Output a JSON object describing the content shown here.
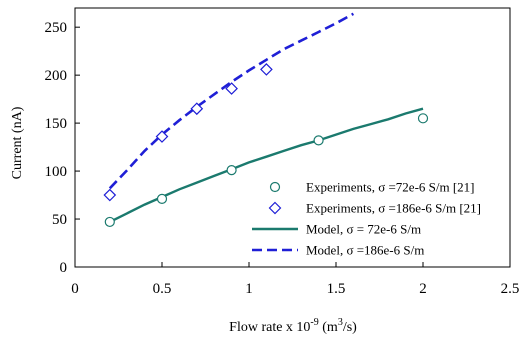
{
  "chart_data": {
    "type": "line",
    "xlabel": "Flow rate x 10",
    "xlabel_sup": "-9",
    "xlabel_unit": " (m",
    "xlabel_unit_sup": "3",
    "xlabel_unit_end": "/s)",
    "ylabel": "Current (nA)",
    "xlim": [
      0,
      2.5
    ],
    "ylim": [
      0,
      270
    ],
    "x_ticks": [
      0,
      0.5,
      1,
      1.5,
      2,
      2.5
    ],
    "x_tick_labels": [
      "0",
      "0.5",
      "1",
      "1.5",
      "2",
      "2.5"
    ],
    "y_ticks": [
      0,
      50,
      100,
      150,
      200,
      250
    ],
    "y_tick_labels": [
      "0",
      "50",
      "100",
      "150",
      "200",
      "250"
    ],
    "grid": false,
    "legend_position": "lower-right",
    "series": [
      {
        "name": "Experiments, σ =72e-6 S/m [21]",
        "kind": "scatter",
        "marker": "circle",
        "color": "#1b7a6e",
        "x": [
          0.2,
          0.5,
          0.9,
          1.4,
          2.0
        ],
        "y": [
          47,
          71,
          101,
          132,
          155
        ]
      },
      {
        "name": "Experiments, σ =186e-6 S/m [21]",
        "kind": "scatter",
        "marker": "diamond",
        "color": "#1f1fd6",
        "x": [
          0.2,
          0.5,
          0.7,
          0.9,
          1.1
        ],
        "y": [
          75,
          136,
          165,
          186,
          206
        ]
      },
      {
        "name": "Model, σ = 72e-6 S/m",
        "kind": "line",
        "style": "solid",
        "color": "#1b7a6e",
        "x": [
          0.2,
          0.3,
          0.4,
          0.5,
          0.6,
          0.7,
          0.8,
          0.9,
          1.0,
          1.1,
          1.2,
          1.3,
          1.4,
          1.5,
          1.6,
          1.7,
          1.8,
          1.9,
          2.0
        ],
        "y": [
          47,
          56,
          65,
          73,
          81,
          88,
          95,
          102,
          109,
          115,
          121,
          127,
          132,
          138,
          144,
          149,
          154,
          160,
          165
        ]
      },
      {
        "name": "Model, σ =186e-6 S/m",
        "kind": "line",
        "style": "dashed",
        "color": "#1f1fd6",
        "x": [
          0.2,
          0.3,
          0.4,
          0.5,
          0.6,
          0.7,
          0.8,
          0.9,
          1.0,
          1.1,
          1.2,
          1.3,
          1.4,
          1.5,
          1.6
        ],
        "y": [
          82,
          101,
          121,
          138,
          153,
          167,
          180,
          193,
          205,
          216,
          227,
          236,
          245,
          254,
          264
        ]
      }
    ]
  }
}
